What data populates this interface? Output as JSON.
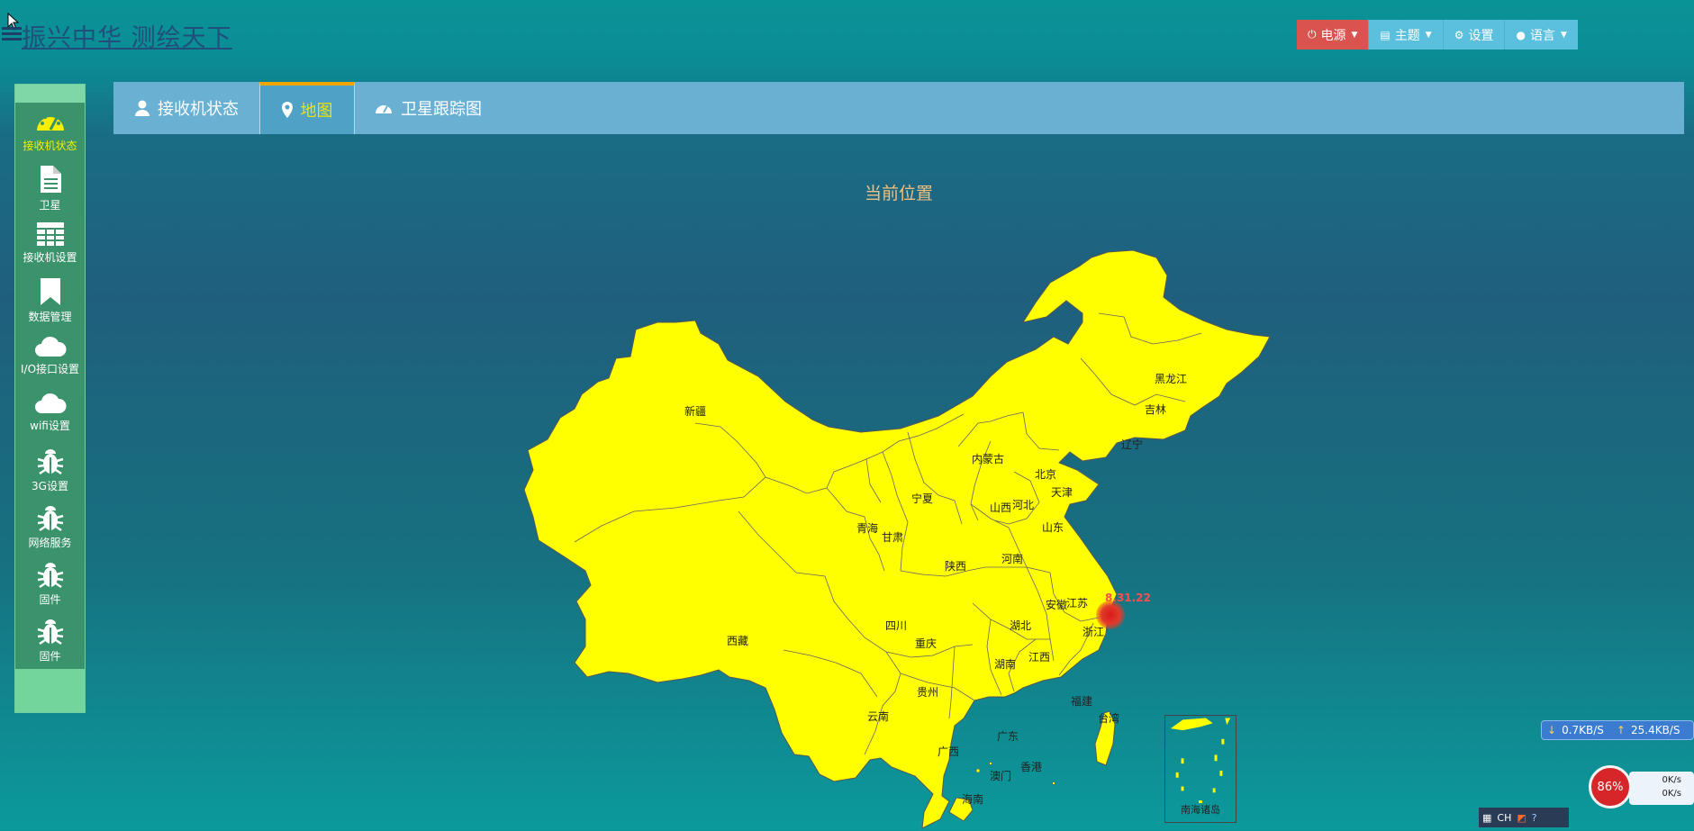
{
  "header": {
    "brand": "振兴中华 测绘天下",
    "buttons": [
      {
        "label": "电源",
        "icon": "power-icon"
      },
      {
        "label": "主题",
        "icon": "file-icon"
      },
      {
        "label": "设置",
        "icon": "gear-icon"
      },
      {
        "label": "语言",
        "icon": "globe-icon"
      }
    ]
  },
  "sidebar": {
    "items": [
      {
        "label": "接收机状态",
        "icon": "dashboard-icon",
        "active": true
      },
      {
        "label": "卫星",
        "icon": "file-icon"
      },
      {
        "label": "接收机设置",
        "icon": "table-icon"
      },
      {
        "label": "数据管理",
        "icon": "bookmark-icon"
      },
      {
        "label": "I/O接口设置",
        "icon": "cloud-icon"
      },
      {
        "label": "wifi设置",
        "icon": "cloud-icon"
      },
      {
        "label": "3G设置",
        "icon": "bug-icon"
      },
      {
        "label": "网络服务",
        "icon": "bug-icon"
      },
      {
        "label": "固件",
        "icon": "bug-icon"
      },
      {
        "label": "固件",
        "icon": "bug-icon"
      }
    ]
  },
  "tabs": [
    {
      "label": "接收机状态",
      "icon": "user-icon"
    },
    {
      "label": "地图",
      "icon": "map-marker-icon",
      "active": true
    },
    {
      "label": "卫星跟踪图",
      "icon": "dashboard-icon"
    }
  ],
  "map": {
    "title": "当前位置",
    "marker_label": "8.31.22",
    "inset_label": "南海诸岛",
    "provinces": [
      "新疆",
      "西藏",
      "青海",
      "甘肃",
      "宁夏",
      "内蒙古",
      "黑龙江",
      "吉林",
      "辽宁",
      "北京",
      "天津",
      "河北",
      "山西",
      "山东",
      "河南",
      "陕西",
      "四川",
      "重庆",
      "湖北",
      "安徽",
      "江苏",
      "浙江",
      "江西",
      "湖南",
      "贵州",
      "云南",
      "广西",
      "广东",
      "福建",
      "台湾",
      "香港",
      "澳门",
      "海南"
    ]
  },
  "system": {
    "down_speed": "0.7KB/S",
    "up_speed": "25.4KB/S",
    "ball_percent": "86%",
    "speed_up": "0K/s",
    "speed_down": "0K/s",
    "tray_lang": "CH"
  },
  "colors": {
    "map_fill": "#ffff00",
    "power_button": "#d9534f",
    "info_button": "#5bc0de",
    "sidebar": "#3a936b",
    "tab_bar": "#6ab0d3"
  }
}
